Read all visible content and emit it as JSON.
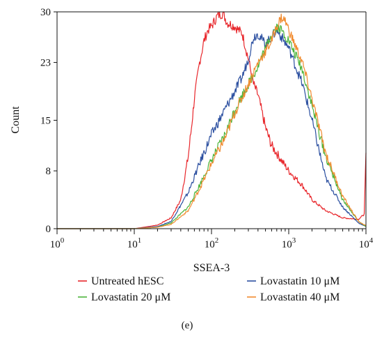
{
  "chart_data": {
    "type": "line",
    "title": "",
    "xlabel": "SSEA-3",
    "ylabel": "Count",
    "x_scale": "log",
    "xlim": [
      1,
      10000
    ],
    "ylim": [
      0,
      30
    ],
    "y_ticks": [
      0,
      8,
      15,
      23,
      30
    ],
    "x_tick_exponents": [
      "0",
      "1",
      "2",
      "3",
      "4"
    ],
    "x_tick_base": "10",
    "legend_position": "bottom",
    "caption": "(e)",
    "series": [
      {
        "name": "Untreated hESC",
        "color": "#e8262b",
        "x": [
          1,
          10,
          20,
          30,
          40,
          50,
          55,
          60,
          70,
          80,
          90,
          100,
          120,
          140,
          160,
          200,
          250,
          300,
          350,
          400,
          500,
          600,
          800,
          1000,
          1500,
          2000,
          3000,
          5000,
          8000,
          9500,
          10000
        ],
        "y": [
          0,
          0,
          0.5,
          1.5,
          4,
          10,
          14,
          18,
          23,
          26,
          27.5,
          28,
          29.5,
          29.8,
          28.5,
          28,
          27,
          23.5,
          20,
          18.5,
          14,
          11.5,
          9.5,
          8,
          6,
          4,
          2.5,
          1.5,
          1.3,
          2,
          10.5
        ]
      },
      {
        "name": "Lovastatin 10 μM",
        "color": "#2b4fa0",
        "x": [
          1,
          10,
          20,
          30,
          50,
          70,
          100,
          150,
          200,
          250,
          300,
          350,
          400,
          500,
          600,
          700,
          1000,
          1500,
          2000,
          3000,
          5000,
          8000,
          10000
        ],
        "y": [
          0,
          0,
          0.3,
          1,
          5,
          9,
          13,
          16.5,
          19,
          21,
          23.5,
          26.5,
          27,
          25.5,
          26.5,
          27.5,
          25,
          20,
          15,
          7,
          3,
          0.8,
          0.3
        ]
      },
      {
        "name": "Lovastatin 20 μM",
        "color": "#4cb43a",
        "x": [
          1,
          10,
          20,
          30,
          50,
          70,
          100,
          150,
          200,
          300,
          400,
          500,
          600,
          700,
          800,
          1000,
          1500,
          2000,
          3000,
          5000,
          8000,
          10000
        ],
        "y": [
          0,
          0,
          0.2,
          0.8,
          3,
          6,
          9.5,
          13,
          16.5,
          20,
          22.5,
          25,
          27,
          28,
          27.5,
          26,
          22,
          17,
          10,
          4,
          1,
          0.3
        ]
      },
      {
        "name": "Lovastatin 40 μM",
        "color": "#f18b2f",
        "x": [
          1,
          10,
          20,
          30,
          50,
          70,
          100,
          150,
          200,
          300,
          400,
          500,
          600,
          700,
          800,
          900,
          1000,
          1500,
          2000,
          3000,
          5000,
          8000,
          10000
        ],
        "y": [
          0,
          0,
          0.2,
          0.6,
          2.5,
          5.5,
          9,
          12.5,
          16,
          20,
          23,
          24.5,
          26,
          28,
          29.2,
          28.8,
          27.5,
          23,
          18,
          10.5,
          4.5,
          1,
          0.4
        ]
      }
    ]
  }
}
